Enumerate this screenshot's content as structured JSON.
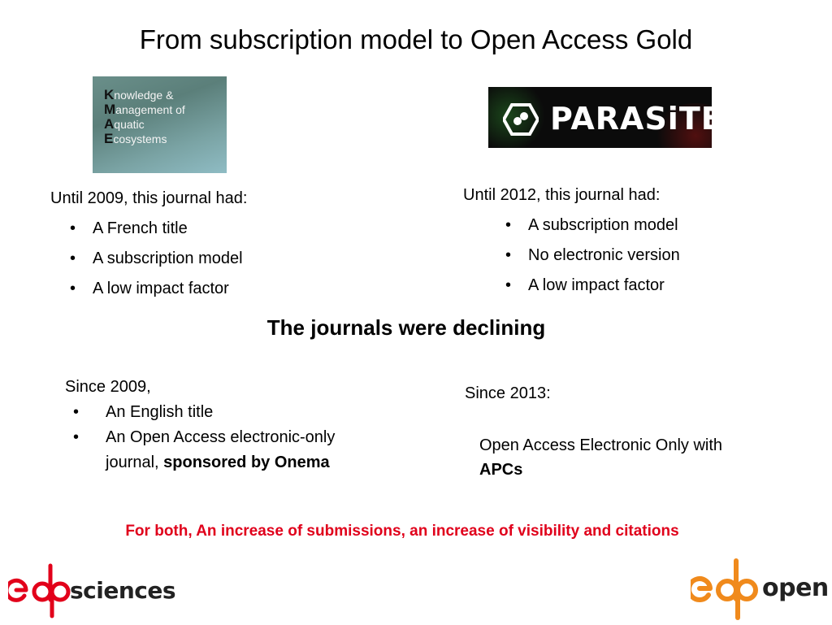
{
  "slide": {
    "title": "From subscription model to Open Access Gold"
  },
  "kmae_logo": {
    "lines": [
      {
        "cap": "K",
        "rest": "nowledge &"
      },
      {
        "cap": "M",
        "rest": "anagement of"
      },
      {
        "cap": "A",
        "rest": "quatic"
      },
      {
        "cap": "E",
        "rest": "cosystems"
      }
    ]
  },
  "parasite_logo": {
    "text": "PARASiTE"
  },
  "left_before": {
    "intro": "Until 2009, this journal had:",
    "bullets": [
      "A French title",
      "A subscription model",
      "A low impact factor"
    ]
  },
  "right_before": {
    "intro": "Until 2012, this journal had:",
    "bullets": [
      "A subscription model",
      "No electronic version",
      "A low impact factor"
    ]
  },
  "declining": "The journals were declining",
  "left_after": {
    "intro": "Since 2009,",
    "bullet1": "An English title",
    "bullet2_prefix": "An Open Access electronic-only journal, ",
    "bullet2_bold": "sponsored by Onema"
  },
  "right_after": {
    "intro": "Since  2013:",
    "line_prefix": "Open Access Electronic Only with ",
    "line_bold": "APCs"
  },
  "conclusion": "For both,  An increase of submissions, an increase of visibility and citations",
  "logos": {
    "edp_sciences_word": "sciences",
    "edp_open_word": "open",
    "brand_red": "#e2001a",
    "brand_orange": "#f08a1c"
  }
}
